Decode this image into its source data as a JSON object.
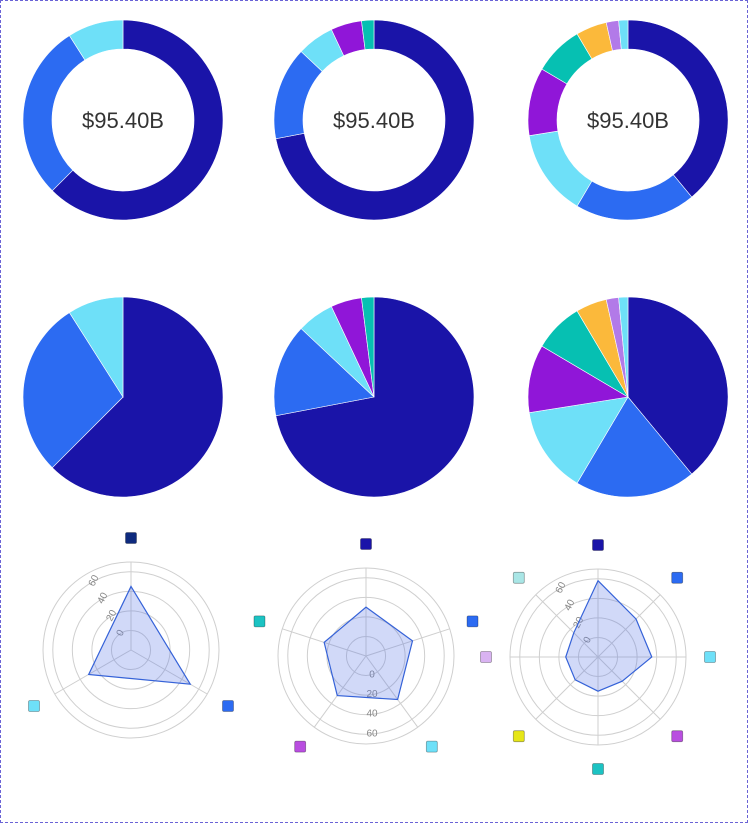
{
  "colors": {
    "navy": "#1a14a8",
    "blue": "#2c6bf2",
    "cyan": "#6ee0f8",
    "purple": "#9016d8",
    "teal": "#06c0b2",
    "amber": "#fbb93b",
    "lilac": "#b27ae8",
    "radar_fill": "#5b78e6",
    "radar_stroke": "#3562d8",
    "grid": "#cfcfcf"
  },
  "chart_data": [
    {
      "type": "donut",
      "center_label": "$95.40B",
      "slices": [
        {
          "value": 62.5,
          "color": "#1a14a8"
        },
        {
          "value": 28.5,
          "color": "#2c6bf2"
        },
        {
          "value": 9.0,
          "color": "#6ee0f8"
        }
      ]
    },
    {
      "type": "donut",
      "center_label": "$95.40B",
      "slices": [
        {
          "value": 72.0,
          "color": "#1a14a8"
        },
        {
          "value": 15.0,
          "color": "#2c6bf2"
        },
        {
          "value": 6.0,
          "color": "#6ee0f8"
        },
        {
          "value": 5.0,
          "color": "#9016d8"
        },
        {
          "value": 2.0,
          "color": "#06c0b2"
        }
      ]
    },
    {
      "type": "donut",
      "center_label": "$95.40B",
      "slices": [
        {
          "value": 39.0,
          "color": "#1a14a8"
        },
        {
          "value": 19.5,
          "color": "#2c6bf2"
        },
        {
          "value": 14.0,
          "color": "#6ee0f8"
        },
        {
          "value": 11.0,
          "color": "#9016d8"
        },
        {
          "value": 8.0,
          "color": "#06c0b2"
        },
        {
          "value": 5.0,
          "color": "#fbb93b"
        },
        {
          "value": 2.0,
          "color": "#b27ae8"
        },
        {
          "value": 1.5,
          "color": "#6ee0f8"
        }
      ]
    },
    {
      "type": "pie",
      "slices": [
        {
          "value": 62.5,
          "color": "#1a14a8"
        },
        {
          "value": 28.5,
          "color": "#2c6bf2"
        },
        {
          "value": 9.0,
          "color": "#6ee0f8"
        }
      ]
    },
    {
      "type": "pie",
      "slices": [
        {
          "value": 72.0,
          "color": "#1a14a8"
        },
        {
          "value": 15.0,
          "color": "#2c6bf2"
        },
        {
          "value": 6.0,
          "color": "#6ee0f8"
        },
        {
          "value": 5.0,
          "color": "#9016d8"
        },
        {
          "value": 2.0,
          "color": "#06c0b2"
        }
      ]
    },
    {
      "type": "pie",
      "slices": [
        {
          "value": 39.0,
          "color": "#1a14a8"
        },
        {
          "value": 19.5,
          "color": "#2c6bf2"
        },
        {
          "value": 14.0,
          "color": "#6ee0f8"
        },
        {
          "value": 11.0,
          "color": "#9016d8"
        },
        {
          "value": 8.0,
          "color": "#06c0b2"
        },
        {
          "value": 5.0,
          "color": "#fbb93b"
        },
        {
          "value": 2.0,
          "color": "#b27ae8"
        },
        {
          "value": 1.5,
          "color": "#6ee0f8"
        }
      ]
    },
    {
      "type": "radar",
      "rmax": 90,
      "ticks": [
        0,
        20,
        40,
        60
      ],
      "values": [
        65,
        70,
        50
      ],
      "point_colors": [
        "#0e2a7e",
        "#2c6bf2",
        "#6ee0f8"
      ]
    },
    {
      "type": "radar",
      "rmax": 90,
      "ticks": [
        0,
        20,
        40,
        60
      ],
      "values": [
        50,
        50,
        55,
        50,
        45
      ],
      "point_colors": [
        "#1a14a8",
        "#2c6bf2",
        "#6ee0f8",
        "#b94ee0",
        "#1cc3c3"
      ]
    },
    {
      "type": "radar",
      "rmax": 90,
      "ticks": [
        0,
        20,
        40,
        60
      ],
      "values": [
        78,
        55,
        55,
        35,
        35,
        33,
        33,
        35
      ],
      "point_colors": [
        "#1a14a8",
        "#2c6bf2",
        "#6ee0f8",
        "#b94ee0",
        "#1cc3c3",
        "#e6e617",
        "#d9b3f2",
        "#a9e6e6"
      ]
    }
  ]
}
